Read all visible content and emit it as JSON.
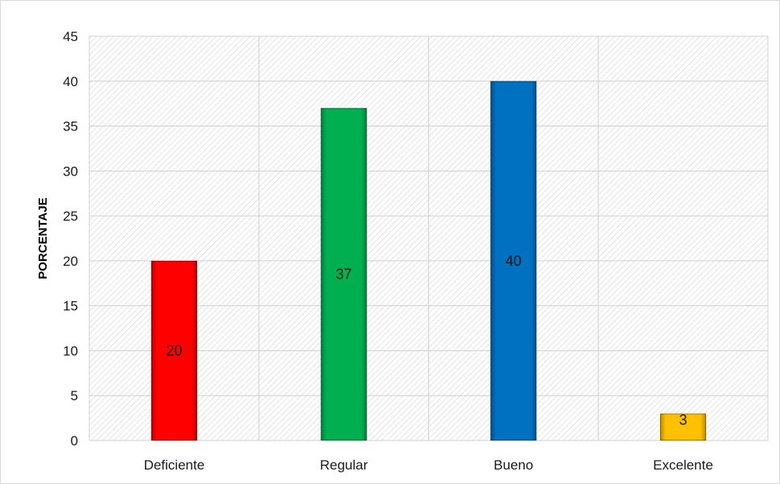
{
  "chart_data": {
    "type": "bar",
    "title": "",
    "xlabel": "",
    "ylabel": "PORCENTAJE",
    "ylim": [
      0,
      45
    ],
    "yticks": [
      0,
      5,
      10,
      15,
      20,
      25,
      30,
      35,
      40,
      45
    ],
    "grid": true,
    "legend": "none",
    "categories": [
      "Deficiente",
      "Regular",
      "Bueno",
      "Excelente"
    ],
    "values": [
      20,
      37,
      40,
      3
    ],
    "data_labels": [
      "20",
      "37",
      "40",
      "3"
    ],
    "colors": [
      "#ff0000",
      "#00b050",
      "#0070c0",
      "#ffc000"
    ]
  }
}
